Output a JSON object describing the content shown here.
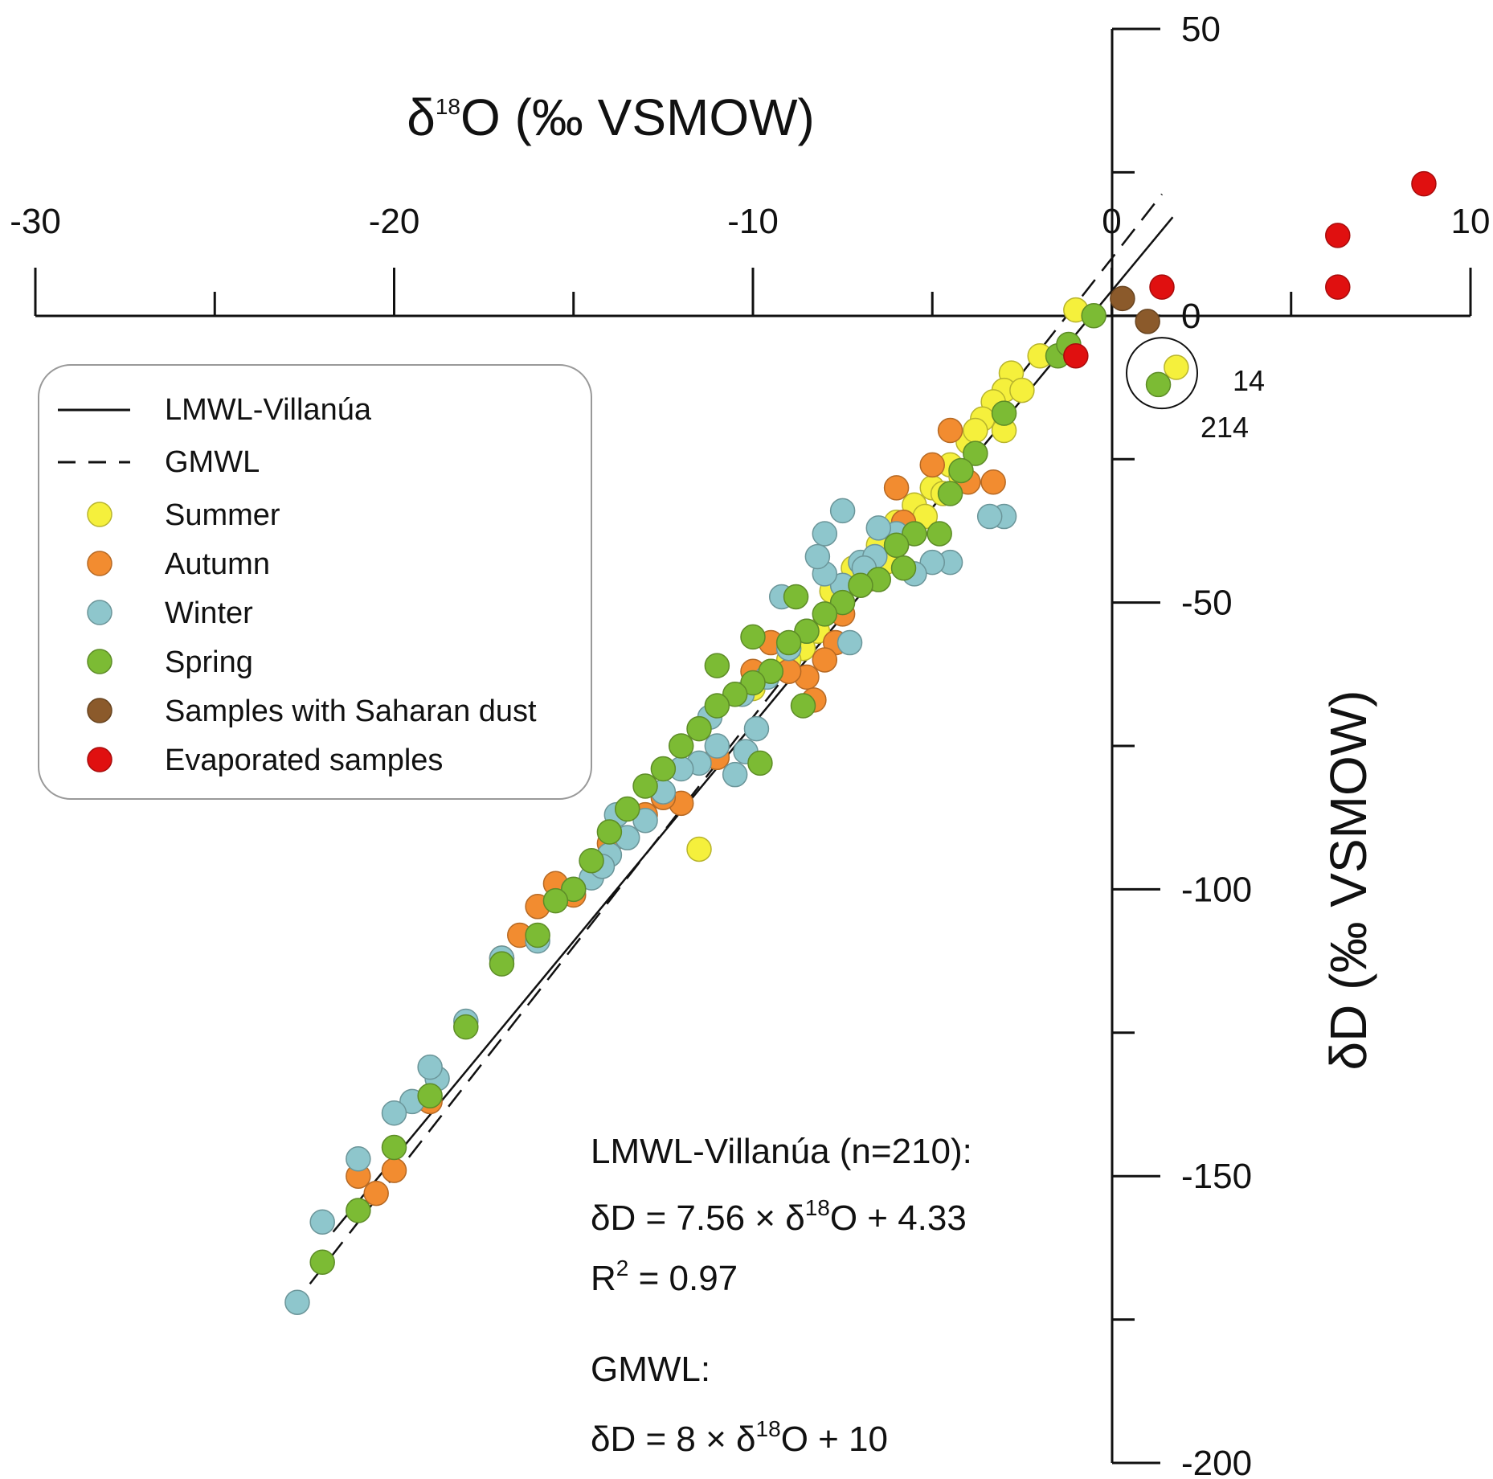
{
  "chart_data": {
    "type": "scatter",
    "title": "",
    "xlabel": {
      "pre": "δ",
      "sup": "18",
      "post": "O (‰ VSMOW)"
    },
    "ylabel": "δD (‰ VSMOW)",
    "xlim": [
      -30,
      10
    ],
    "ylim": [
      -200,
      50
    ],
    "x_tick_labels": [
      "-30",
      "-20",
      "-10",
      "0",
      "10"
    ],
    "x_tick_values": [
      -30,
      -20,
      -10,
      0,
      10
    ],
    "x_minor_ticks": [
      -25,
      -15,
      -5,
      5
    ],
    "y_tick_labels": [
      "50",
      "0",
      "-50",
      "-100",
      "-150",
      "-200"
    ],
    "y_tick_values": [
      50,
      0,
      -50,
      -100,
      -150,
      -200
    ],
    "y_minor_ticks": [
      25,
      -25,
      -75,
      -125,
      -175
    ],
    "legend": {
      "position": "upper-left",
      "lines": [
        {
          "label": "LMWL-Villanúa",
          "style": "solid"
        },
        {
          "label": "GMWL",
          "style": "dashed"
        }
      ],
      "markers": [
        {
          "label": "Summer",
          "color": "#f5f03c"
        },
        {
          "label": "Autumn",
          "color": "#f28c30"
        },
        {
          "label": "Winter",
          "color": "#8ec6cc"
        },
        {
          "label": "Spring",
          "color": "#7cbb34"
        },
        {
          "label": "Samples with Saharan dust",
          "color": "#8b5a2b"
        },
        {
          "label": "Evaporated samples",
          "color": "#e01010"
        }
      ]
    },
    "lines": [
      {
        "name": "LMWL-Villanúa",
        "slope": 7.56,
        "intercept": 4.33,
        "x_range": [
          -21.7,
          1.7
        ],
        "style": "solid",
        "color": "#111111"
      },
      {
        "name": "GMWL",
        "slope": 8,
        "intercept": 10,
        "x_range": [
          -22.9,
          1.4
        ],
        "style": "dashed",
        "color": "#111111"
      }
    ],
    "series": [
      {
        "name": "Summer",
        "color": "#f5f03c",
        "points": [
          [
            -1,
            1
          ],
          [
            -2,
            -7
          ],
          [
            -2.8,
            -10
          ],
          [
            -3,
            -13
          ],
          [
            -3.3,
            -15
          ],
          [
            -3.6,
            -18
          ],
          [
            -4,
            -22
          ],
          [
            -4.5,
            -26
          ],
          [
            -5,
            -30
          ],
          [
            -5.5,
            -33
          ],
          [
            -6,
            -36
          ],
          [
            -6.5,
            -40
          ],
          [
            -7.2,
            -44
          ],
          [
            -7.8,
            -48
          ],
          [
            -8.2,
            -55
          ],
          [
            -8.6,
            -58
          ],
          [
            -9,
            -60
          ],
          [
            -9.5,
            -62
          ],
          [
            -10,
            -65
          ],
          [
            -11,
            -77
          ],
          [
            -4.2,
            -28
          ],
          [
            -5.2,
            -35
          ],
          [
            -3,
            -20
          ],
          [
            -2.5,
            -13
          ],
          [
            -3.8,
            -20
          ],
          [
            -4.7,
            -31
          ],
          [
            -6.3,
            -43
          ],
          [
            -11.5,
            -93
          ],
          [
            1.8,
            -9
          ]
        ]
      },
      {
        "name": "Autumn",
        "color": "#f28c30",
        "points": [
          [
            -4.5,
            -20
          ],
          [
            -5,
            -26
          ],
          [
            -4,
            -29
          ],
          [
            -3.3,
            -29
          ],
          [
            -6,
            -30
          ],
          [
            -5.8,
            -36
          ],
          [
            -6,
            -40
          ],
          [
            -6.8,
            -46
          ],
          [
            -7.5,
            -52
          ],
          [
            -7.7,
            -57
          ],
          [
            -8,
            -60
          ],
          [
            -8.5,
            -63
          ],
          [
            -9,
            -62
          ],
          [
            -9.5,
            -57
          ],
          [
            -10,
            -62
          ],
          [
            -8.3,
            -67
          ],
          [
            -11,
            -77
          ],
          [
            -12,
            -85
          ],
          [
            -12.5,
            -84
          ],
          [
            -13,
            -87
          ],
          [
            -14,
            -92
          ],
          [
            -15,
            -101
          ],
          [
            -15.5,
            -99
          ],
          [
            -16,
            -103
          ],
          [
            -16.5,
            -108
          ],
          [
            -17,
            -112
          ],
          [
            -19,
            -137
          ],
          [
            -20,
            -149
          ],
          [
            -20.5,
            -153
          ],
          [
            -21,
            -150
          ]
        ]
      },
      {
        "name": "Winter",
        "color": "#8ec6cc",
        "points": [
          [
            -3,
            -35
          ],
          [
            -3.4,
            -35
          ],
          [
            -4.5,
            -43
          ],
          [
            -5,
            -43
          ],
          [
            -5.5,
            -45
          ],
          [
            -6,
            -38
          ],
          [
            -6.5,
            -37
          ],
          [
            -7,
            -43
          ],
          [
            -7.5,
            -47
          ],
          [
            -8,
            -45
          ],
          [
            -8.2,
            -42
          ],
          [
            -7.3,
            -57
          ],
          [
            -8.5,
            -55
          ],
          [
            -9,
            -58
          ],
          [
            -9.6,
            -63
          ],
          [
            -10.3,
            -66
          ],
          [
            -11.2,
            -70
          ],
          [
            -11,
            -75
          ],
          [
            -10.5,
            -80
          ],
          [
            -11.5,
            -78
          ],
          [
            -12,
            -79
          ],
          [
            -12.5,
            -83
          ],
          [
            -13,
            -88
          ],
          [
            -13.5,
            -91
          ],
          [
            -14,
            -94
          ],
          [
            -14.5,
            -98
          ],
          [
            -15,
            -100
          ],
          [
            -14.2,
            -96
          ],
          [
            -13.8,
            -87
          ],
          [
            -16,
            -109
          ],
          [
            -17,
            -112
          ],
          [
            -18,
            -123
          ],
          [
            -18.8,
            -133
          ],
          [
            -19,
            -131
          ],
          [
            -19.5,
            -137
          ],
          [
            -20,
            -139
          ],
          [
            -21,
            -147
          ],
          [
            -22,
            -158
          ],
          [
            -7.5,
            -34
          ],
          [
            -8,
            -38
          ],
          [
            -9.9,
            -72
          ],
          [
            -10.2,
            -76
          ],
          [
            -6.6,
            -42
          ],
          [
            -6.9,
            -44
          ],
          [
            -9.2,
            -49
          ],
          [
            -22.7,
            -172
          ]
        ]
      },
      {
        "name": "Spring",
        "color": "#7cbb34",
        "points": [
          [
            -0.5,
            0
          ],
          [
            -1.5,
            -7
          ],
          [
            -3,
            -17
          ],
          [
            -3.8,
            -24
          ],
          [
            -4.2,
            -27
          ],
          [
            -4.5,
            -31
          ],
          [
            -5.5,
            -38
          ],
          [
            -6,
            -40
          ],
          [
            -5.8,
            -44
          ],
          [
            -6.5,
            -46
          ],
          [
            -7,
            -47
          ],
          [
            -7.5,
            -50
          ],
          [
            -8,
            -52
          ],
          [
            -8.5,
            -55
          ],
          [
            -9,
            -57
          ],
          [
            -9.5,
            -62
          ],
          [
            -10,
            -64
          ],
          [
            -10.5,
            -66
          ],
          [
            -11,
            -68
          ],
          [
            -11.5,
            -72
          ],
          [
            -12,
            -75
          ],
          [
            -12.5,
            -79
          ],
          [
            -13,
            -82
          ],
          [
            -13.5,
            -86
          ],
          [
            -14,
            -90
          ],
          [
            -14.5,
            -95
          ],
          [
            -15,
            -100
          ],
          [
            -15.5,
            -102
          ],
          [
            -16,
            -108
          ],
          [
            -17,
            -113
          ],
          [
            -18,
            -124
          ],
          [
            -19,
            -136
          ],
          [
            -20,
            -145
          ],
          [
            -21,
            -156
          ],
          [
            -22,
            -165
          ],
          [
            -10,
            -56
          ],
          [
            -11,
            -61
          ],
          [
            -4.8,
            -38
          ],
          [
            -1.2,
            -5
          ],
          [
            1.3,
            -12
          ],
          [
            -8.8,
            -49
          ],
          [
            -9.8,
            -78
          ],
          [
            -8.6,
            -68
          ]
        ]
      },
      {
        "name": "Samples with Saharan dust",
        "color": "#8b5a2b",
        "points": [
          [
            0.3,
            3
          ],
          [
            1,
            -1
          ]
        ]
      },
      {
        "name": "Evaporated samples",
        "color": "#e01010",
        "points": [
          [
            8.7,
            23
          ],
          [
            6.3,
            14
          ],
          [
            6.3,
            5
          ],
          [
            1.4,
            5
          ],
          [
            -1,
            -7
          ]
        ]
      }
    ],
    "annotations": {
      "circle_center": [
        1.4,
        -10
      ],
      "label_14": "14",
      "label_214": "214",
      "equations": {
        "lmwl_title": "LMWL-Villanúa (n=210):",
        "lmwl_eq": {
          "a": "δD = 7.56 × δ",
          "sup": "18",
          "b": "O + 4.33"
        },
        "lmwl_r2": {
          "a": "R",
          "sup": "2",
          "b": " = 0.97"
        },
        "gmwl_title": "GMWL:",
        "gmwl_eq": {
          "a": "δD = 8 × δ",
          "sup": "18",
          "b": "O + 10"
        }
      }
    }
  }
}
